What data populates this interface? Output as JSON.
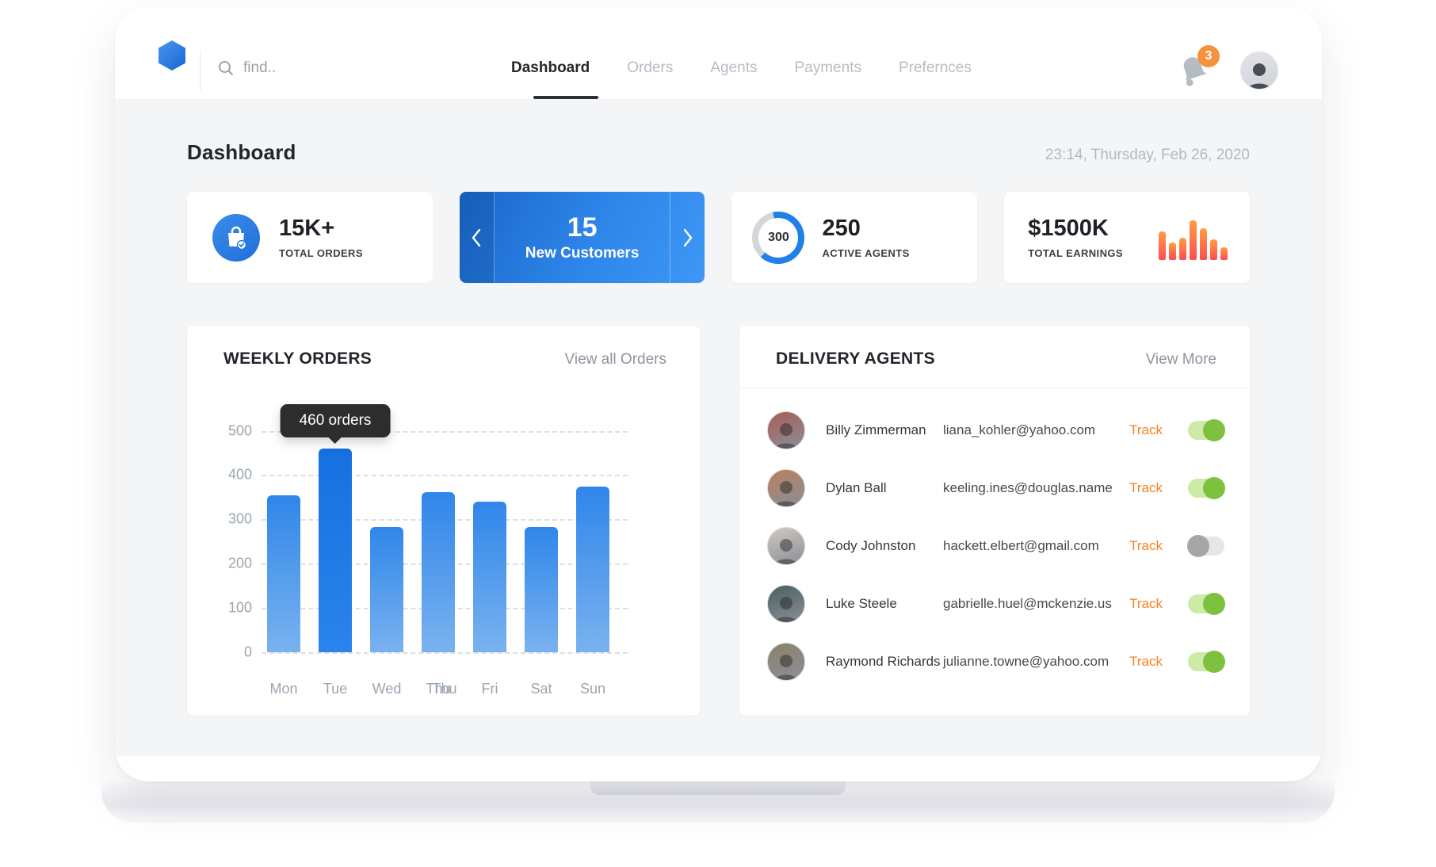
{
  "nav": {
    "search_placeholder": "find..",
    "items": [
      {
        "label": "Dashboard",
        "active": true
      },
      {
        "label": "Orders",
        "active": false
      },
      {
        "label": "Agents",
        "active": false
      },
      {
        "label": "Payments",
        "active": false
      },
      {
        "label": "Prefernces",
        "active": false
      }
    ],
    "notification_count": "3"
  },
  "header": {
    "title": "Dashboard",
    "datetime": "23:14, Thursday, Feb 26, 2020"
  },
  "stats": {
    "orders": {
      "value": "15K+",
      "label": "TOTAL ORDERS"
    },
    "customers": {
      "value": "15",
      "label": "New Customers"
    },
    "agents": {
      "value": "250",
      "label": "ACTIVE AGENTS",
      "ring_value": "300",
      "ring_fill_pct": 65
    },
    "earnings": {
      "value": "$1500K",
      "label": "TOTAL EARNINGS",
      "bars": [
        36,
        22,
        28,
        50,
        40,
        26,
        16
      ]
    }
  },
  "weekly_orders": {
    "title": "WEEKLY ORDERS",
    "link": "View all Orders",
    "tooltip": "460 orders"
  },
  "chart_data": {
    "type": "bar",
    "title": "WEEKLY ORDERS",
    "categories": [
      "Mon",
      "Tue",
      "Wed",
      "Thu",
      "Fri",
      "Sat",
      "Sun"
    ],
    "values": [
      355,
      460,
      283,
      362,
      340,
      283,
      375
    ],
    "yticks": [
      500,
      400,
      300,
      200,
      100,
      0
    ],
    "ylim": [
      0,
      500
    ],
    "grid": "dashed-horizontal",
    "highlight_index": 1,
    "tooltip": {
      "text": "460 orders",
      "category": "Tue",
      "value": 460
    },
    "thu_label_doubled": true,
    "bar_color": "#3b8ceb",
    "highlight_color": "#1b74e2"
  },
  "delivery_agents": {
    "title": "DELIVERY AGENTS",
    "link": "View More",
    "track_label": "Track",
    "agents": [
      {
        "name": "Billy Zimmerman",
        "email": "liana_kohler@yahoo.com",
        "tracking": true,
        "avatar_color": "#a85d55"
      },
      {
        "name": "Dylan Ball",
        "email": "keeling.ines@douglas.name",
        "tracking": true,
        "avatar_color": "#b97f5e"
      },
      {
        "name": "Cody Johnston",
        "email": "hackett.elbert@gmail.com",
        "tracking": false,
        "avatar_color": "#cfc9c2"
      },
      {
        "name": "Luke Steele",
        "email": "gabrielle.huel@mckenzie.us",
        "tracking": true,
        "avatar_color": "#49605f"
      },
      {
        "name": "Raymond Richards",
        "email": "julianne.towne@yahoo.com",
        "tracking": true,
        "avatar_color": "#8d8168"
      }
    ]
  },
  "colors": {
    "accent_blue": "#2180e8",
    "badge_orange": "#f5923e",
    "track_orange": "#f5821f",
    "toggle_green": "#7dc13f",
    "earnings_bar_top": "#ff9f40",
    "earnings_bar_bottom": "#ff4b52",
    "content_bg": "#f4f5f7"
  }
}
